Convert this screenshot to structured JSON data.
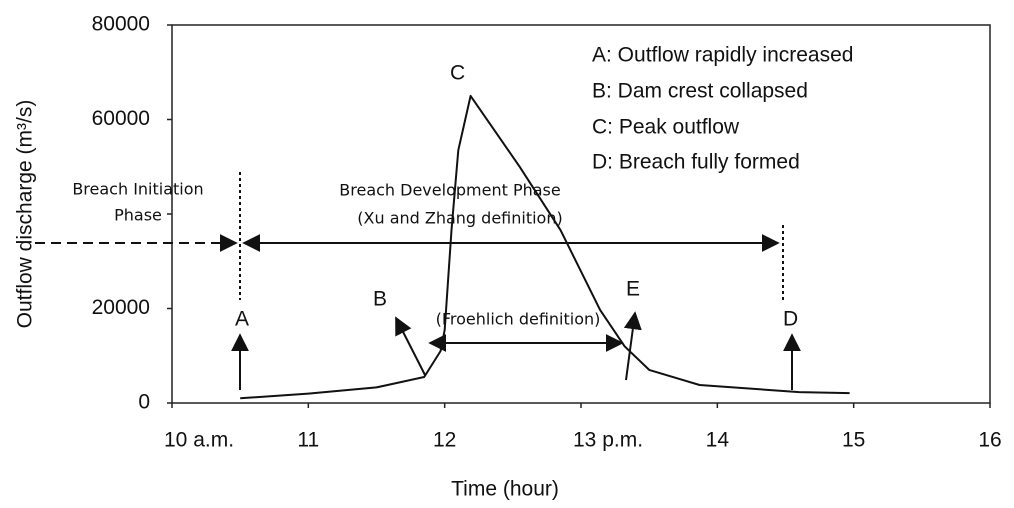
{
  "chart_data": {
    "type": "line",
    "x_label": "Time  (hour)",
    "y_label": "Outflow discharge  (m³/s)",
    "x": [
      10.5,
      11,
      11.5,
      11.85,
      11.97,
      12.0,
      12.05,
      12.1,
      12.19,
      12.55,
      12.85,
      13.14,
      13.32,
      13.5,
      13.87,
      14.6,
      14.97
    ],
    "series": [
      {
        "name": "Outflow",
        "color": "#111111",
        "values": [
          1000,
          2000,
          3300,
          5500,
          11000,
          15500,
          36600,
          53500,
          65000,
          50000,
          36600,
          19700,
          12000,
          7000,
          3800,
          2300,
          2100
        ]
      }
    ],
    "xlim": [
      10,
      16
    ],
    "xticks": [
      {
        "value": 10,
        "label": "10 a.m."
      },
      11,
      12,
      {
        "value": 13,
        "label": "13 p.m."
      },
      14,
      15,
      16
    ],
    "ylim": [
      0,
      80000
    ],
    "yticks": [
      0,
      20000,
      40000,
      60000,
      80000
    ],
    "ytick_labels_shown": [
      0,
      20000,
      60000,
      80000
    ],
    "legend_notes": [
      "A: Outflow rapidly increased",
      "B: Dam crest collapsed",
      "C: Peak outflow",
      "D: Breach fully formed"
    ],
    "points": [
      "A",
      "B",
      "C",
      "D",
      "E"
    ],
    "phases": {
      "initiation_1": "Breach Initiation",
      "initiation_2": "Phase",
      "development_1": "Breach Development Phase",
      "development_2": "(Xu and Zhang definition)",
      "froehlich": "(Froehlich definition)"
    }
  }
}
